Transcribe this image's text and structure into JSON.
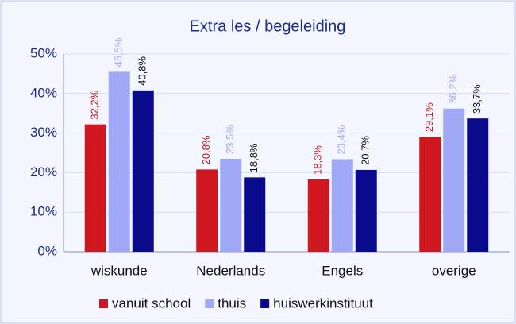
{
  "chart_data": {
    "type": "bar",
    "title": "Extra les / begeleiding",
    "categories": [
      "wiskunde",
      "Nederlands",
      "Engels",
      "overige"
    ],
    "series": [
      {
        "name": "vanuit school",
        "color": "#d0161e",
        "values": [
          32.2,
          20.8,
          18.3,
          29.1
        ],
        "value_labels": [
          "32,2%",
          "20,8%",
          "18,3%",
          "29,1%"
        ]
      },
      {
        "name": "thuis",
        "color": "#a0a8f8",
        "values": [
          45.5,
          23.5,
          23.4,
          36.2
        ],
        "value_labels": [
          "45,5%",
          "23,5%",
          "23,4%",
          "36,2%"
        ]
      },
      {
        "name": "huiswerkinstituut",
        "color": "#0a0a8c",
        "values": [
          40.8,
          18.8,
          20.7,
          33.7
        ],
        "value_labels": [
          "40,8%",
          "18,8%",
          "20,7%",
          "33,7%"
        ]
      }
    ],
    "ylim": [
      0,
      50
    ],
    "yticks": [
      {
        "value": 0,
        "label": "0%"
      },
      {
        "value": 10,
        "label": "10%"
      },
      {
        "value": 20,
        "label": "20%"
      },
      {
        "value": 30,
        "label": "30%"
      },
      {
        "value": 40,
        "label": "40%"
      },
      {
        "value": 50,
        "label": "50%"
      }
    ],
    "grid": true,
    "legend": "bottom"
  }
}
